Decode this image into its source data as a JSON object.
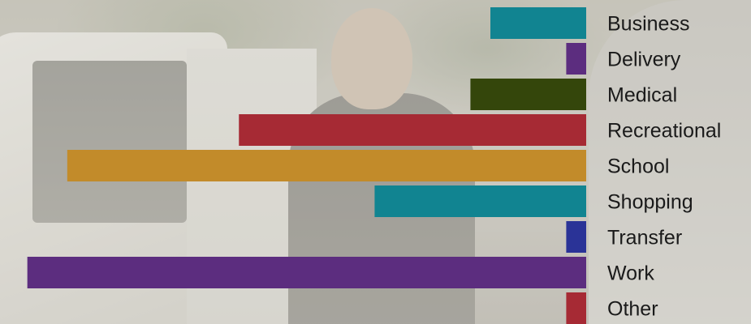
{
  "chart_data": {
    "type": "bar",
    "orientation": "horizontal",
    "title": "",
    "xlabel": "",
    "ylabel": "",
    "categories": [
      "Business",
      "Delivery",
      "Medical",
      "Recreational",
      "School",
      "Shopping",
      "Transfer",
      "Work",
      "Other"
    ],
    "values": [
      12,
      2.5,
      14.5,
      43.5,
      65,
      26.5,
      2.5,
      70,
      2.5
    ],
    "colors": [
      "#118491",
      "#5c2d7f",
      "#34460b",
      "#a62a34",
      "#c28b2a",
      "#118491",
      "#2a3397",
      "#5c2d7f",
      "#a62a34"
    ],
    "xlim": [
      0,
      72
    ],
    "bar_direction": "right-to-left",
    "grid": false,
    "legend": "none"
  }
}
